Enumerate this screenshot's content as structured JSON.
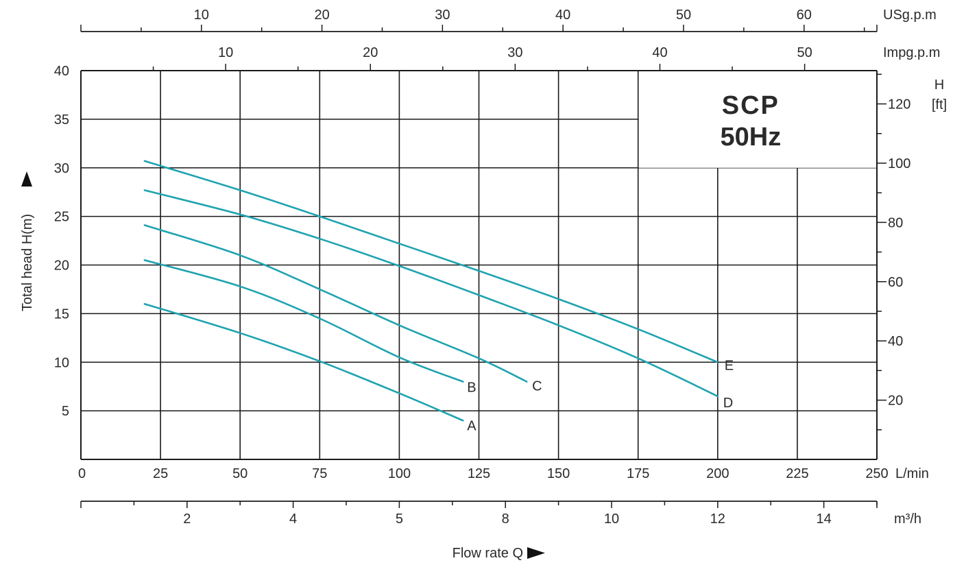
{
  "chart_data": {
    "type": "line",
    "title": "SCP",
    "subtitle": "50Hz",
    "xlabel": "Flow  rate Q",
    "ylabel": "Total head H(m)",
    "xlim": [
      0,
      250
    ],
    "ylim": [
      0,
      40
    ],
    "x_unit": "L/min",
    "x_ticks": [
      0,
      25,
      50,
      75,
      100,
      125,
      150,
      175,
      200,
      225,
      250
    ],
    "y_ticks": [
      5,
      10,
      15,
      20,
      25,
      30,
      35,
      40
    ],
    "grid": true,
    "secondary_axes": {
      "usgpm": {
        "unit": "USg.p.m",
        "ticks": [
          10,
          20,
          30,
          40,
          50,
          60
        ]
      },
      "impgpm": {
        "unit": "Impg.p.m",
        "ticks": [
          10,
          20,
          30,
          40,
          50
        ]
      },
      "feet": {
        "unit_line1": "H",
        "unit_line2": "[ft]",
        "ticks": [
          20,
          40,
          60,
          80,
          100,
          120
        ]
      },
      "m3h": {
        "unit": "m³/h",
        "tick_labels": [
          "2",
          "4",
          "5",
          "8",
          "10",
          "12",
          "14"
        ]
      }
    },
    "series": [
      {
        "name": "A",
        "x": [
          20,
          50,
          75,
          100,
          120
        ],
        "y": [
          16,
          13,
          10.1,
          6.8,
          4
        ]
      },
      {
        "name": "B",
        "x": [
          20,
          50,
          75,
          100,
          120
        ],
        "y": [
          20.5,
          17.8,
          14.5,
          10.5,
          8
        ]
      },
      {
        "name": "C",
        "x": [
          20,
          50,
          75,
          100,
          125,
          140
        ],
        "y": [
          24.1,
          21,
          17.5,
          13.8,
          10.4,
          8
        ]
      },
      {
        "name": "D",
        "x": [
          20,
          50,
          75,
          100,
          125,
          150,
          175,
          200
        ],
        "y": [
          27.7,
          25.2,
          22.7,
          19.9,
          16.9,
          13.8,
          10.4,
          6.5
        ]
      },
      {
        "name": "E",
        "x": [
          20,
          50,
          75,
          100,
          125,
          150,
          175,
          200
        ],
        "y": [
          30.7,
          27.7,
          25,
          22.2,
          19.4,
          16.5,
          13.4,
          10
        ]
      }
    ],
    "series_color": "#1fa3b0"
  }
}
